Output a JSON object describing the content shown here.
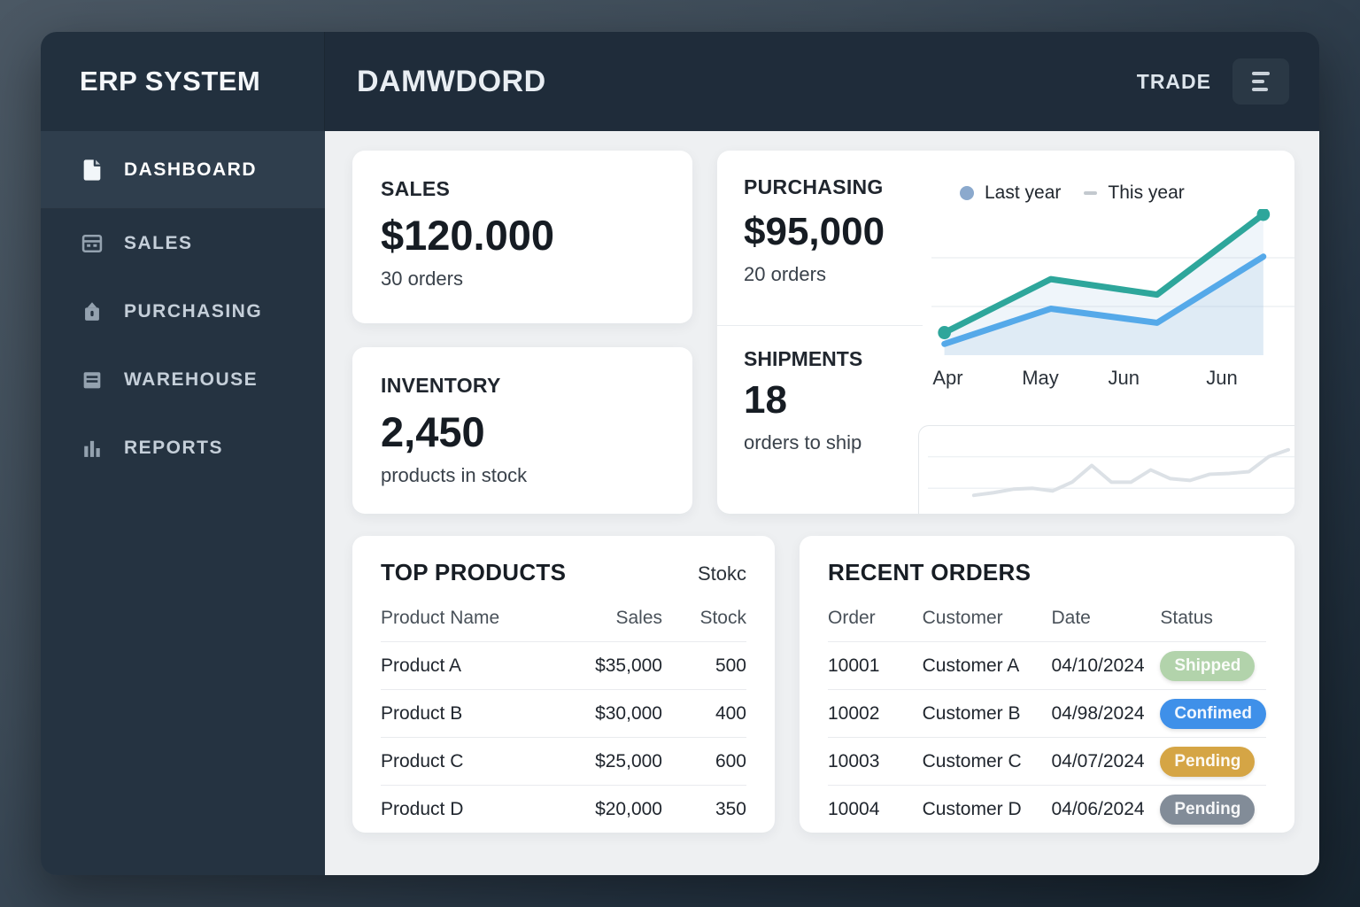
{
  "app": {
    "logo": "ERP SYSTEM",
    "title": "DAMWDORD",
    "topbar_action": "TRADE"
  },
  "sidebar": {
    "items": [
      {
        "label": "DASHBOARD",
        "icon": "document-icon",
        "active": true
      },
      {
        "label": "SALES",
        "icon": "register-icon",
        "active": false
      },
      {
        "label": "PURCHASING",
        "icon": "shopping-bag-icon",
        "active": false
      },
      {
        "label": "WAREHOUSE",
        "icon": "box-icon",
        "active": false
      },
      {
        "label": "REPORTS",
        "icon": "bar-chart-icon",
        "active": false
      }
    ]
  },
  "stats": {
    "sales": {
      "label": "SALES",
      "value": "$120.000",
      "sub": "30 orders"
    },
    "inventory": {
      "label": "INVENTORY",
      "value": "2,450",
      "sub": "products in stock"
    },
    "purchasing": {
      "label": "PURCHASING",
      "value": "$95,000",
      "sub": "20 orders"
    },
    "shipments": {
      "label": "SHIPMENTS",
      "value": "18",
      "sub": "orders to ship"
    }
  },
  "legend": [
    {
      "label": "Last year",
      "marker": "dot",
      "color": "#8ba9cd"
    },
    {
      "label": "This year",
      "marker": "dash",
      "color": "#c3c9cf"
    }
  ],
  "chart_data": [
    {
      "type": "line",
      "title": "Purchasing: last year vs this year",
      "categories": [
        "Apr",
        "May",
        "Jun",
        "Jun"
      ],
      "series": [
        {
          "name": "Last year",
          "color": "#55a9e9",
          "values": [
            8,
            33,
            23,
            70
          ],
          "markers": "none",
          "fill": "rgba(167,199,226,0.22)"
        },
        {
          "name": "This year",
          "color": "#2ea69b",
          "values": [
            16,
            54,
            43,
            100
          ],
          "markers": "first-last",
          "fill": "rgba(167,199,226,0.18)"
        }
      ],
      "ylim": [
        0,
        100
      ],
      "units": "relative-unlabeled",
      "grid": true,
      "legend_position": "top"
    },
    {
      "type": "line",
      "title": "Shipments sparkline",
      "series": [
        {
          "name": "Shipments",
          "color": "#dce1e6",
          "values": [
            21,
            24,
            28,
            29,
            26,
            36,
            55,
            36,
            36,
            50,
            40,
            38,
            45,
            46,
            48,
            65,
            73
          ],
          "markers": "none"
        }
      ],
      "ylim": [
        0,
        100
      ],
      "units": "relative-unlabeled",
      "grid": true
    }
  ],
  "top_products": {
    "title": "TOP PRODUCTS",
    "corner_label": "Stokc",
    "columns": [
      "Product Name",
      "Sales",
      "Stock"
    ],
    "rows": [
      {
        "name": "Product A",
        "sales": "$35,000",
        "stock": "500"
      },
      {
        "name": "Product B",
        "sales": "$30,000",
        "stock": "400"
      },
      {
        "name": "Product C",
        "sales": "$25,000",
        "stock": "600"
      },
      {
        "name": "Product D",
        "sales": "$20,000",
        "stock": "350"
      }
    ]
  },
  "recent_orders": {
    "title": "RECENT ORDERS",
    "columns": [
      "Order",
      "Customer",
      "Date",
      "Status"
    ],
    "rows": [
      {
        "order": "10001",
        "customer": "Customer A",
        "date": "04/10/2024",
        "status": "Shipped",
        "status_color": "#b2d3ab"
      },
      {
        "order": "10002",
        "customer": "Customer B",
        "date": "04/98/2024",
        "status": "Confimed",
        "status_color": "#3f90e9"
      },
      {
        "order": "10003",
        "customer": "Customer C",
        "date": "04/07/2024",
        "status": "Pending",
        "status_color": "#d5a545"
      },
      {
        "order": "10004",
        "customer": "Customer D",
        "date": "04/06/2024",
        "status": "Pending",
        "status_color": "#828c98"
      }
    ]
  }
}
